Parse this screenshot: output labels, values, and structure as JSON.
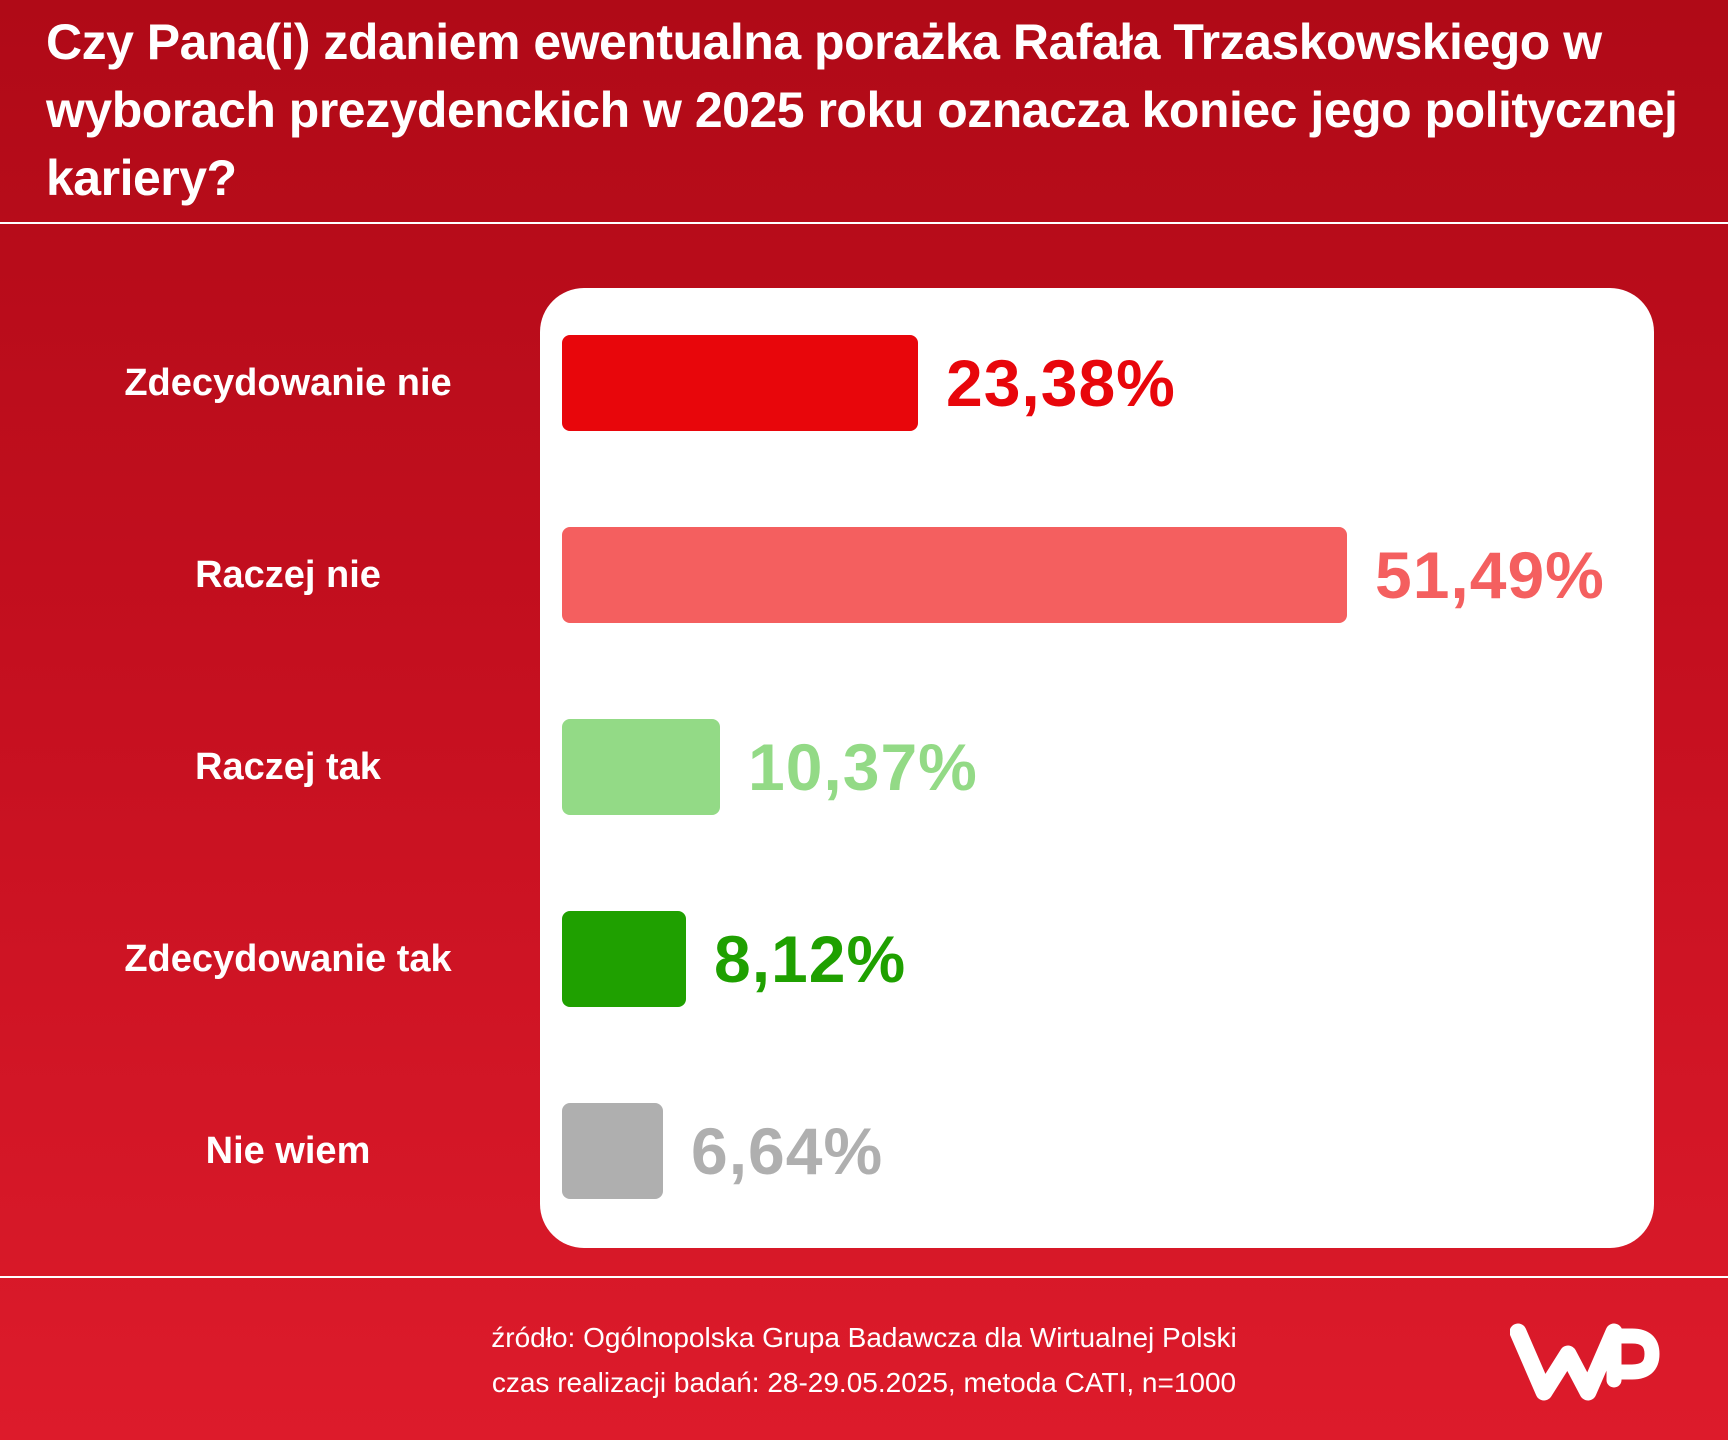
{
  "header": {
    "title": "Czy Pana(i) zdaniem ewentualna porażka Rafała Trzaskowskiego w wyborach prezydenckich w 2025 roku oznacza koniec jego politycznej kariery?"
  },
  "chart_data": {
    "type": "bar",
    "orientation": "horizontal",
    "title": "Czy Pana(i) zdaniem ewentualna porażka Rafała Trzaskowskiego w wyborach prezydenckich w 2025 roku oznacza koniec jego politycznej kariery?",
    "categories": [
      "Zdecydowanie nie",
      "Raczej nie",
      "Raczej tak",
      "Zdecydowanie tak",
      "Nie wiem"
    ],
    "values": [
      23.38,
      51.49,
      10.37,
      8.12,
      6.64
    ],
    "value_labels": [
      "23,38%",
      "51,49%",
      "10,37%",
      "8,12%",
      "6,64%"
    ],
    "colors": [
      "#e8060b",
      "#f45f5f",
      "#93da86",
      "#1fa000",
      "#afafaf"
    ],
    "unit": "%",
    "xlim": [
      0,
      51.49
    ]
  },
  "footer": {
    "source_line": "źródło: Ogólnopolska Grupa Badawcza dla Wirtualnej Polski",
    "method_line": "czas realizacji badań: 28-29.05.2025, metoda CATI, n=1000",
    "logo": "wp-logo"
  }
}
